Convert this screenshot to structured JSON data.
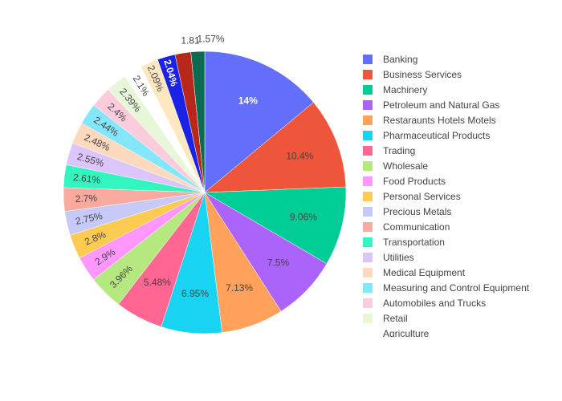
{
  "chart_data": {
    "type": "pie",
    "direction": "clockwise",
    "start": "12 o'clock",
    "legend_position": "right",
    "slices": [
      {
        "label": "Banking",
        "value": 14,
        "text": "14%",
        "color": "#636efa",
        "text_color": "#ffffff",
        "bold": true
      },
      {
        "label": "Business Services",
        "value": 10.4,
        "text": "10.4%",
        "color": "#EF553B",
        "text_color": "#444444"
      },
      {
        "label": "Machinery",
        "value": 9.06,
        "text": "9.06%",
        "color": "#00cc96",
        "text_color": "#444444"
      },
      {
        "label": "Petroleum and Natural Gas",
        "value": 7.5,
        "text": "7.5%",
        "color": "#ab63fa",
        "text_color": "#444444"
      },
      {
        "label": "Restaraunts Hotels Motels",
        "value": 7.13,
        "text": "7.13%",
        "color": "#FFA15A",
        "text_color": "#444444"
      },
      {
        "label": "Pharmaceutical Products",
        "value": 6.95,
        "text": "6.95%",
        "color": "#19d3f3",
        "text_color": "#444444"
      },
      {
        "label": "Trading",
        "value": 5.48,
        "text": "5.48%",
        "color": "#FF6692",
        "text_color": "#444444"
      },
      {
        "label": "Wholesale",
        "value": 3.96,
        "text": "3.96%",
        "color": "#B6E880",
        "text_color": "#444444"
      },
      {
        "label": "Food Products",
        "value": 2.9,
        "text": "2.9%",
        "color": "#FF97FF",
        "text_color": "#444444"
      },
      {
        "label": "Personal Services",
        "value": 2.8,
        "text": "2.8%",
        "color": "#FECB52",
        "text_color": "#444444"
      },
      {
        "label": "Precious Metals",
        "value": 2.75,
        "text": "2.75%",
        "color": "#c7caf9",
        "text_color": "#444444"
      },
      {
        "label": "Communication",
        "value": 2.7,
        "text": "2.7%",
        "color": "#f7aa9d",
        "text_color": "#444444"
      },
      {
        "label": "Transportation",
        "value": 2.61,
        "text": "2.61%",
        "color": "#33f5c0",
        "text_color": "#444444"
      },
      {
        "label": "Utilities",
        "value": 2.55,
        "text": "2.55%",
        "color": "#dcc5fb",
        "text_color": "#444444"
      },
      {
        "label": "Medical Equipment",
        "value": 2.48,
        "text": "2.48%",
        "color": "#fdd9bd",
        "text_color": "#444444"
      },
      {
        "label": "Measuring and Control Equipment",
        "value": 2.44,
        "text": "2.44%",
        "color": "#84e7f9",
        "text_color": "#444444"
      },
      {
        "label": "Automobiles and Trucks",
        "value": 2.4,
        "text": "2.4%",
        "color": "#fbccdc",
        "text_color": "#444444"
      },
      {
        "label": "Retail",
        "value": 2.39,
        "text": "2.39%",
        "color": "#e8f7d8",
        "text_color": "#444444"
      },
      {
        "label": "Agriculture",
        "value": 2.1,
        "text": "2.1%",
        "color": "#ffffff",
        "text_color": "#444444"
      },
      {
        "label": "",
        "value": 2.09,
        "text": "2.09%",
        "color": "#ffe8c0",
        "text_color": "#444444"
      },
      {
        "label": "",
        "value": 2.04,
        "text": "2.04%",
        "color": "#1a22e6",
        "text_color": "#ffffff",
        "bold": true
      },
      {
        "label": "",
        "value": 1.81,
        "text": "1.81",
        "color": "#b8281a",
        "text_color": "#444444"
      },
      {
        "label": "",
        "value": 1.57,
        "text": "1.57%",
        "color": "#0a6b4f",
        "text_color": "#444444"
      }
    ]
  }
}
